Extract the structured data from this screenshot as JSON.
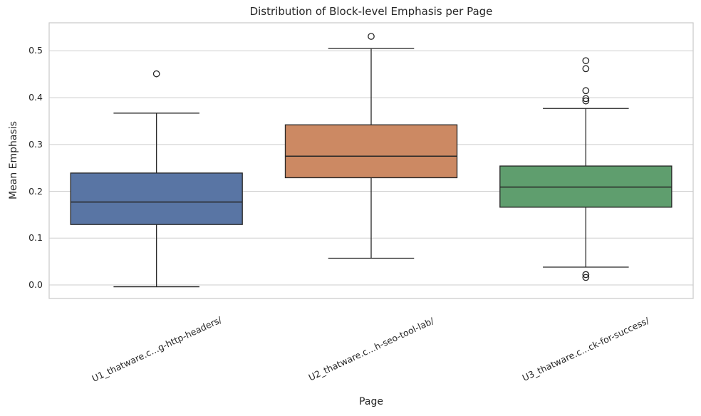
{
  "chart_data": {
    "type": "box",
    "title": "Distribution of Block-level Emphasis per Page",
    "xlabel": "Page",
    "ylabel": "Mean Emphasis",
    "ylim": [
      -0.029,
      0.56
    ],
    "yticks": [
      0.0,
      0.1,
      0.2,
      0.3,
      0.4,
      0.5
    ],
    "grid": true,
    "legend": "none",
    "box_width": 0.8,
    "cap_width": 0.4,
    "colors": {
      "edge": "#262626",
      "grid": "#cdcdcd",
      "spine": "#cccccc",
      "background": "#ffffff"
    },
    "categories": [
      "U1_thatware.c...g-http-headers/",
      "U2_thatware.c...h-seo-tool-lab/",
      "U3_thatware.c...ck-for-success/"
    ],
    "series": [
      {
        "category": "U1_thatware.c...g-http-headers/",
        "color": "#5975a4",
        "whisker_low": -0.004,
        "q1": 0.129,
        "median": 0.177,
        "q3": 0.239,
        "whisker_high": 0.367,
        "outliers": [
          0.451
        ]
      },
      {
        "category": "U2_thatware.c...h-seo-tool-lab/",
        "color": "#cc8963",
        "whisker_low": 0.057,
        "q1": 0.229,
        "median": 0.275,
        "q3": 0.342,
        "whisker_high": 0.505,
        "outliers": [
          0.531
        ]
      },
      {
        "category": "U3_thatware.c...ck-for-success/",
        "color": "#5f9e6e",
        "whisker_low": 0.038,
        "q1": 0.166,
        "median": 0.209,
        "q3": 0.254,
        "whisker_high": 0.377,
        "outliers": [
          0.479,
          0.462,
          0.415,
          0.398,
          0.393,
          0.022,
          0.016
        ]
      }
    ]
  }
}
